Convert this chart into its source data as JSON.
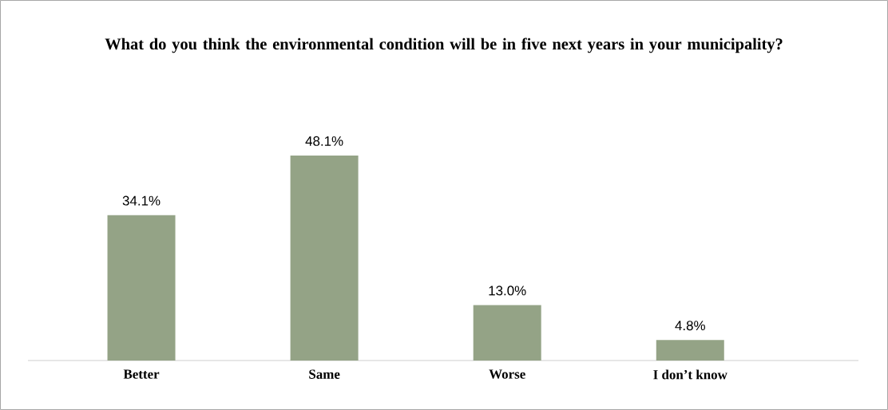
{
  "chart_data": {
    "type": "bar",
    "title": "What do you think the environmental condition will be in five next years in your municipality?",
    "categories": [
      "Better",
      "Same",
      "Worse",
      "I don’t know"
    ],
    "values": [
      34.1,
      48.1,
      13.0,
      4.8
    ],
    "value_labels": [
      "34.1%",
      "48.1%",
      "13.0%",
      "4.8%"
    ],
    "color": "#94a386"
  }
}
